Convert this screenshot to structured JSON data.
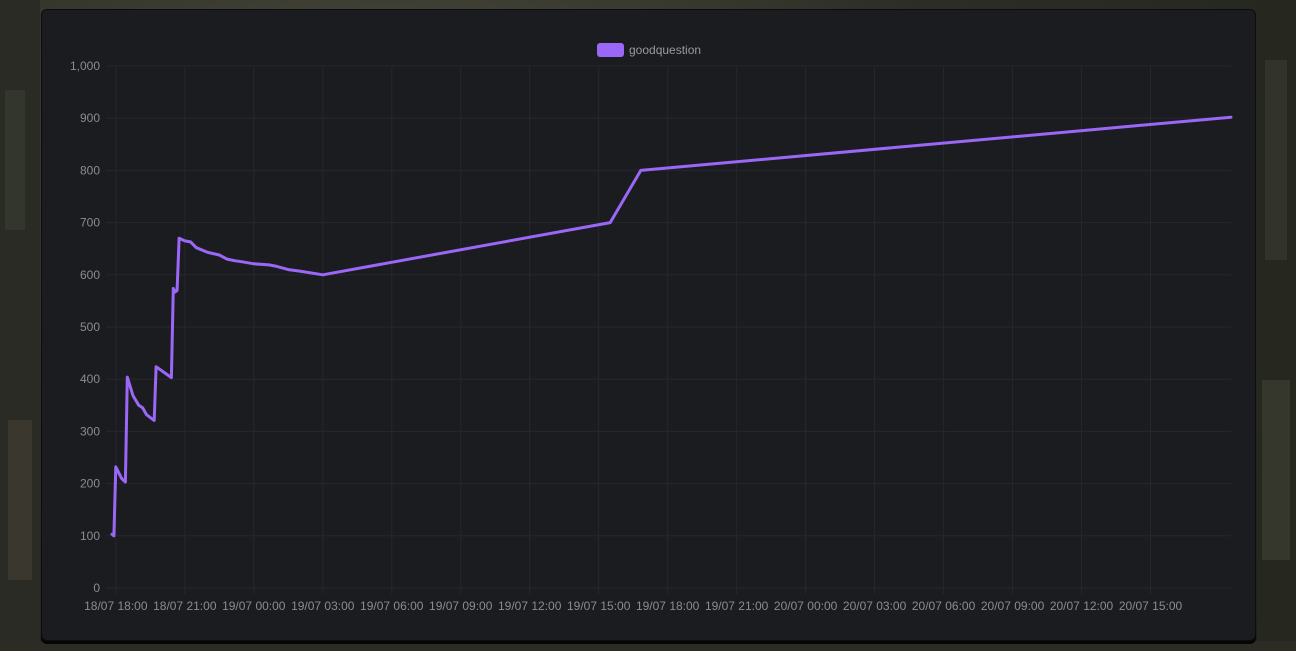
{
  "chart_data": {
    "type": "line",
    "legend": {
      "position": "top-center"
    },
    "grid": true,
    "series": [
      {
        "name": "goodquestion",
        "color": "#9b67f7",
        "points": [
          [
            "18/07 17:50",
            103
          ],
          [
            "18/07 17:55",
            100
          ],
          [
            "18/07 18:00",
            232
          ],
          [
            "18/07 18:15",
            210
          ],
          [
            "18/07 18:25",
            203
          ],
          [
            "18/07 18:30",
            404
          ],
          [
            "18/07 18:45",
            368
          ],
          [
            "18/07 19:00",
            350
          ],
          [
            "18/07 19:10",
            345
          ],
          [
            "18/07 19:20",
            332
          ],
          [
            "18/07 19:40",
            321
          ],
          [
            "18/07 19:45",
            424
          ],
          [
            "18/07 20:25",
            403
          ],
          [
            "18/07 20:30",
            574
          ],
          [
            "18/07 20:35",
            567
          ],
          [
            "18/07 20:40",
            570
          ],
          [
            "18/07 20:45",
            670
          ],
          [
            "18/07 21:00",
            665
          ],
          [
            "18/07 21:15",
            663
          ],
          [
            "18/07 21:30",
            652
          ],
          [
            "18/07 22:00",
            643
          ],
          [
            "18/07 22:30",
            638
          ],
          [
            "18/07 22:50",
            630
          ],
          [
            "18/07 23:10",
            627
          ],
          [
            "18/07 23:30",
            625
          ],
          [
            "19/07 00:00",
            621
          ],
          [
            "19/07 00:40",
            619
          ],
          [
            "19/07 01:00",
            616
          ],
          [
            "19/07 01:30",
            610
          ],
          [
            "19/07 02:00",
            607
          ],
          [
            "19/07 03:00",
            600
          ],
          [
            "19/07 15:30",
            700
          ],
          [
            "19/07 16:50",
            800
          ],
          [
            "20/07 18:30",
            902
          ]
        ]
      }
    ],
    "x_ticks": [
      "18/07 18:00",
      "18/07 21:00",
      "19/07 00:00",
      "19/07 03:00",
      "19/07 06:00",
      "19/07 09:00",
      "19/07 12:00",
      "19/07 15:00",
      "19/07 18:00",
      "19/07 21:00",
      "20/07 00:00",
      "20/07 03:00",
      "20/07 06:00",
      "20/07 09:00",
      "20/07 12:00",
      "20/07 15:00"
    ],
    "y_ticks": [
      "0",
      "100",
      "200",
      "300",
      "400",
      "500",
      "600",
      "700",
      "800",
      "900",
      "1,000"
    ],
    "ylim": [
      0,
      1000
    ],
    "xlim": [
      "18/07 17:50",
      "20/07 18:30"
    ]
  }
}
